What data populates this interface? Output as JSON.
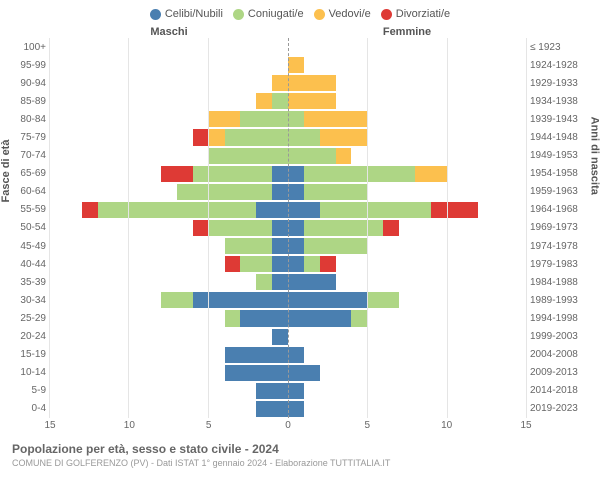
{
  "chart": {
    "type": "population-pyramid",
    "legend": [
      {
        "label": "Celibi/Nubili",
        "color": "#4a7fb0"
      },
      {
        "label": "Coniugati/e",
        "color": "#aed685"
      },
      {
        "label": "Vedovi/e",
        "color": "#fcc04e"
      },
      {
        "label": "Divorziati/e",
        "color": "#de3a35"
      }
    ],
    "header_male": "Maschi",
    "header_female": "Femmine",
    "y_label_left": "Fasce di età",
    "y_label_right": "Anni di nascita",
    "age_groups": [
      "100+",
      "95-99",
      "90-94",
      "85-89",
      "80-84",
      "75-79",
      "70-74",
      "65-69",
      "60-64",
      "55-59",
      "50-54",
      "45-49",
      "40-44",
      "35-39",
      "30-34",
      "25-29",
      "20-24",
      "15-19",
      "10-14",
      "5-9",
      "0-4"
    ],
    "birth_years": [
      "≤ 1923",
      "1924-1928",
      "1929-1933",
      "1934-1938",
      "1939-1943",
      "1944-1948",
      "1949-1953",
      "1954-1958",
      "1959-1963",
      "1964-1968",
      "1969-1973",
      "1974-1978",
      "1979-1983",
      "1984-1988",
      "1989-1993",
      "1994-1998",
      "1999-2003",
      "2004-2008",
      "2009-2013",
      "2014-2018",
      "2019-2023"
    ],
    "x_max": 15,
    "x_ticks": [
      15,
      10,
      5,
      0,
      5,
      10,
      15
    ],
    "gridlines": [
      5,
      10,
      15
    ],
    "male": [
      {
        "c": 0,
        "m": 0,
        "w": 0,
        "d": 0
      },
      {
        "c": 0,
        "m": 0,
        "w": 0,
        "d": 0
      },
      {
        "c": 0,
        "m": 0,
        "w": 1,
        "d": 0
      },
      {
        "c": 0,
        "m": 1,
        "w": 1,
        "d": 0
      },
      {
        "c": 0,
        "m": 3,
        "w": 2,
        "d": 0
      },
      {
        "c": 0,
        "m": 4,
        "w": 1,
        "d": 1
      },
      {
        "c": 0,
        "m": 5,
        "w": 0,
        "d": 0
      },
      {
        "c": 1,
        "m": 5,
        "w": 0,
        "d": 2
      },
      {
        "c": 1,
        "m": 6,
        "w": 0,
        "d": 0
      },
      {
        "c": 2,
        "m": 10,
        "w": 0,
        "d": 1
      },
      {
        "c": 1,
        "m": 4,
        "w": 0,
        "d": 1
      },
      {
        "c": 1,
        "m": 3,
        "w": 0,
        "d": 0
      },
      {
        "c": 1,
        "m": 2,
        "w": 0,
        "d": 1
      },
      {
        "c": 1,
        "m": 1,
        "w": 0,
        "d": 0
      },
      {
        "c": 6,
        "m": 2,
        "w": 0,
        "d": 0
      },
      {
        "c": 3,
        "m": 1,
        "w": 0,
        "d": 0
      },
      {
        "c": 1,
        "m": 0,
        "w": 0,
        "d": 0
      },
      {
        "c": 4,
        "m": 0,
        "w": 0,
        "d": 0
      },
      {
        "c": 4,
        "m": 0,
        "w": 0,
        "d": 0
      },
      {
        "c": 2,
        "m": 0,
        "w": 0,
        "d": 0
      },
      {
        "c": 2,
        "m": 0,
        "w": 0,
        "d": 0
      }
    ],
    "female": [
      {
        "c": 0,
        "m": 0,
        "w": 0,
        "d": 0
      },
      {
        "c": 0,
        "m": 0,
        "w": 1,
        "d": 0
      },
      {
        "c": 0,
        "m": 0,
        "w": 3,
        "d": 0
      },
      {
        "c": 0,
        "m": 0,
        "w": 3,
        "d": 0
      },
      {
        "c": 0,
        "m": 1,
        "w": 4,
        "d": 0
      },
      {
        "c": 0,
        "m": 2,
        "w": 3,
        "d": 0
      },
      {
        "c": 0,
        "m": 3,
        "w": 1,
        "d": 0
      },
      {
        "c": 1,
        "m": 7,
        "w": 2,
        "d": 0
      },
      {
        "c": 1,
        "m": 4,
        "w": 0,
        "d": 0
      },
      {
        "c": 2,
        "m": 7,
        "w": 0,
        "d": 3
      },
      {
        "c": 1,
        "m": 5,
        "w": 0,
        "d": 1
      },
      {
        "c": 1,
        "m": 4,
        "w": 0,
        "d": 0
      },
      {
        "c": 1,
        "m": 1,
        "w": 0,
        "d": 1
      },
      {
        "c": 3,
        "m": 0,
        "w": 0,
        "d": 0
      },
      {
        "c": 5,
        "m": 2,
        "w": 0,
        "d": 0
      },
      {
        "c": 4,
        "m": 1,
        "w": 0,
        "d": 0
      },
      {
        "c": 0,
        "m": 0,
        "w": 0,
        "d": 0
      },
      {
        "c": 1,
        "m": 0,
        "w": 0,
        "d": 0
      },
      {
        "c": 2,
        "m": 0,
        "w": 0,
        "d": 0
      },
      {
        "c": 1,
        "m": 0,
        "w": 0,
        "d": 0
      },
      {
        "c": 1,
        "m": 0,
        "w": 0,
        "d": 0
      }
    ],
    "background_color": "#ffffff",
    "grid_color": "#e5e5e5",
    "center_line_color": "#999999"
  },
  "footer": {
    "title": "Popolazione per età, sesso e stato civile - 2024",
    "subtitle": "COMUNE DI GOLFERENZO (PV) - Dati ISTAT 1° gennaio 2024 - Elaborazione TUTTITALIA.IT"
  }
}
